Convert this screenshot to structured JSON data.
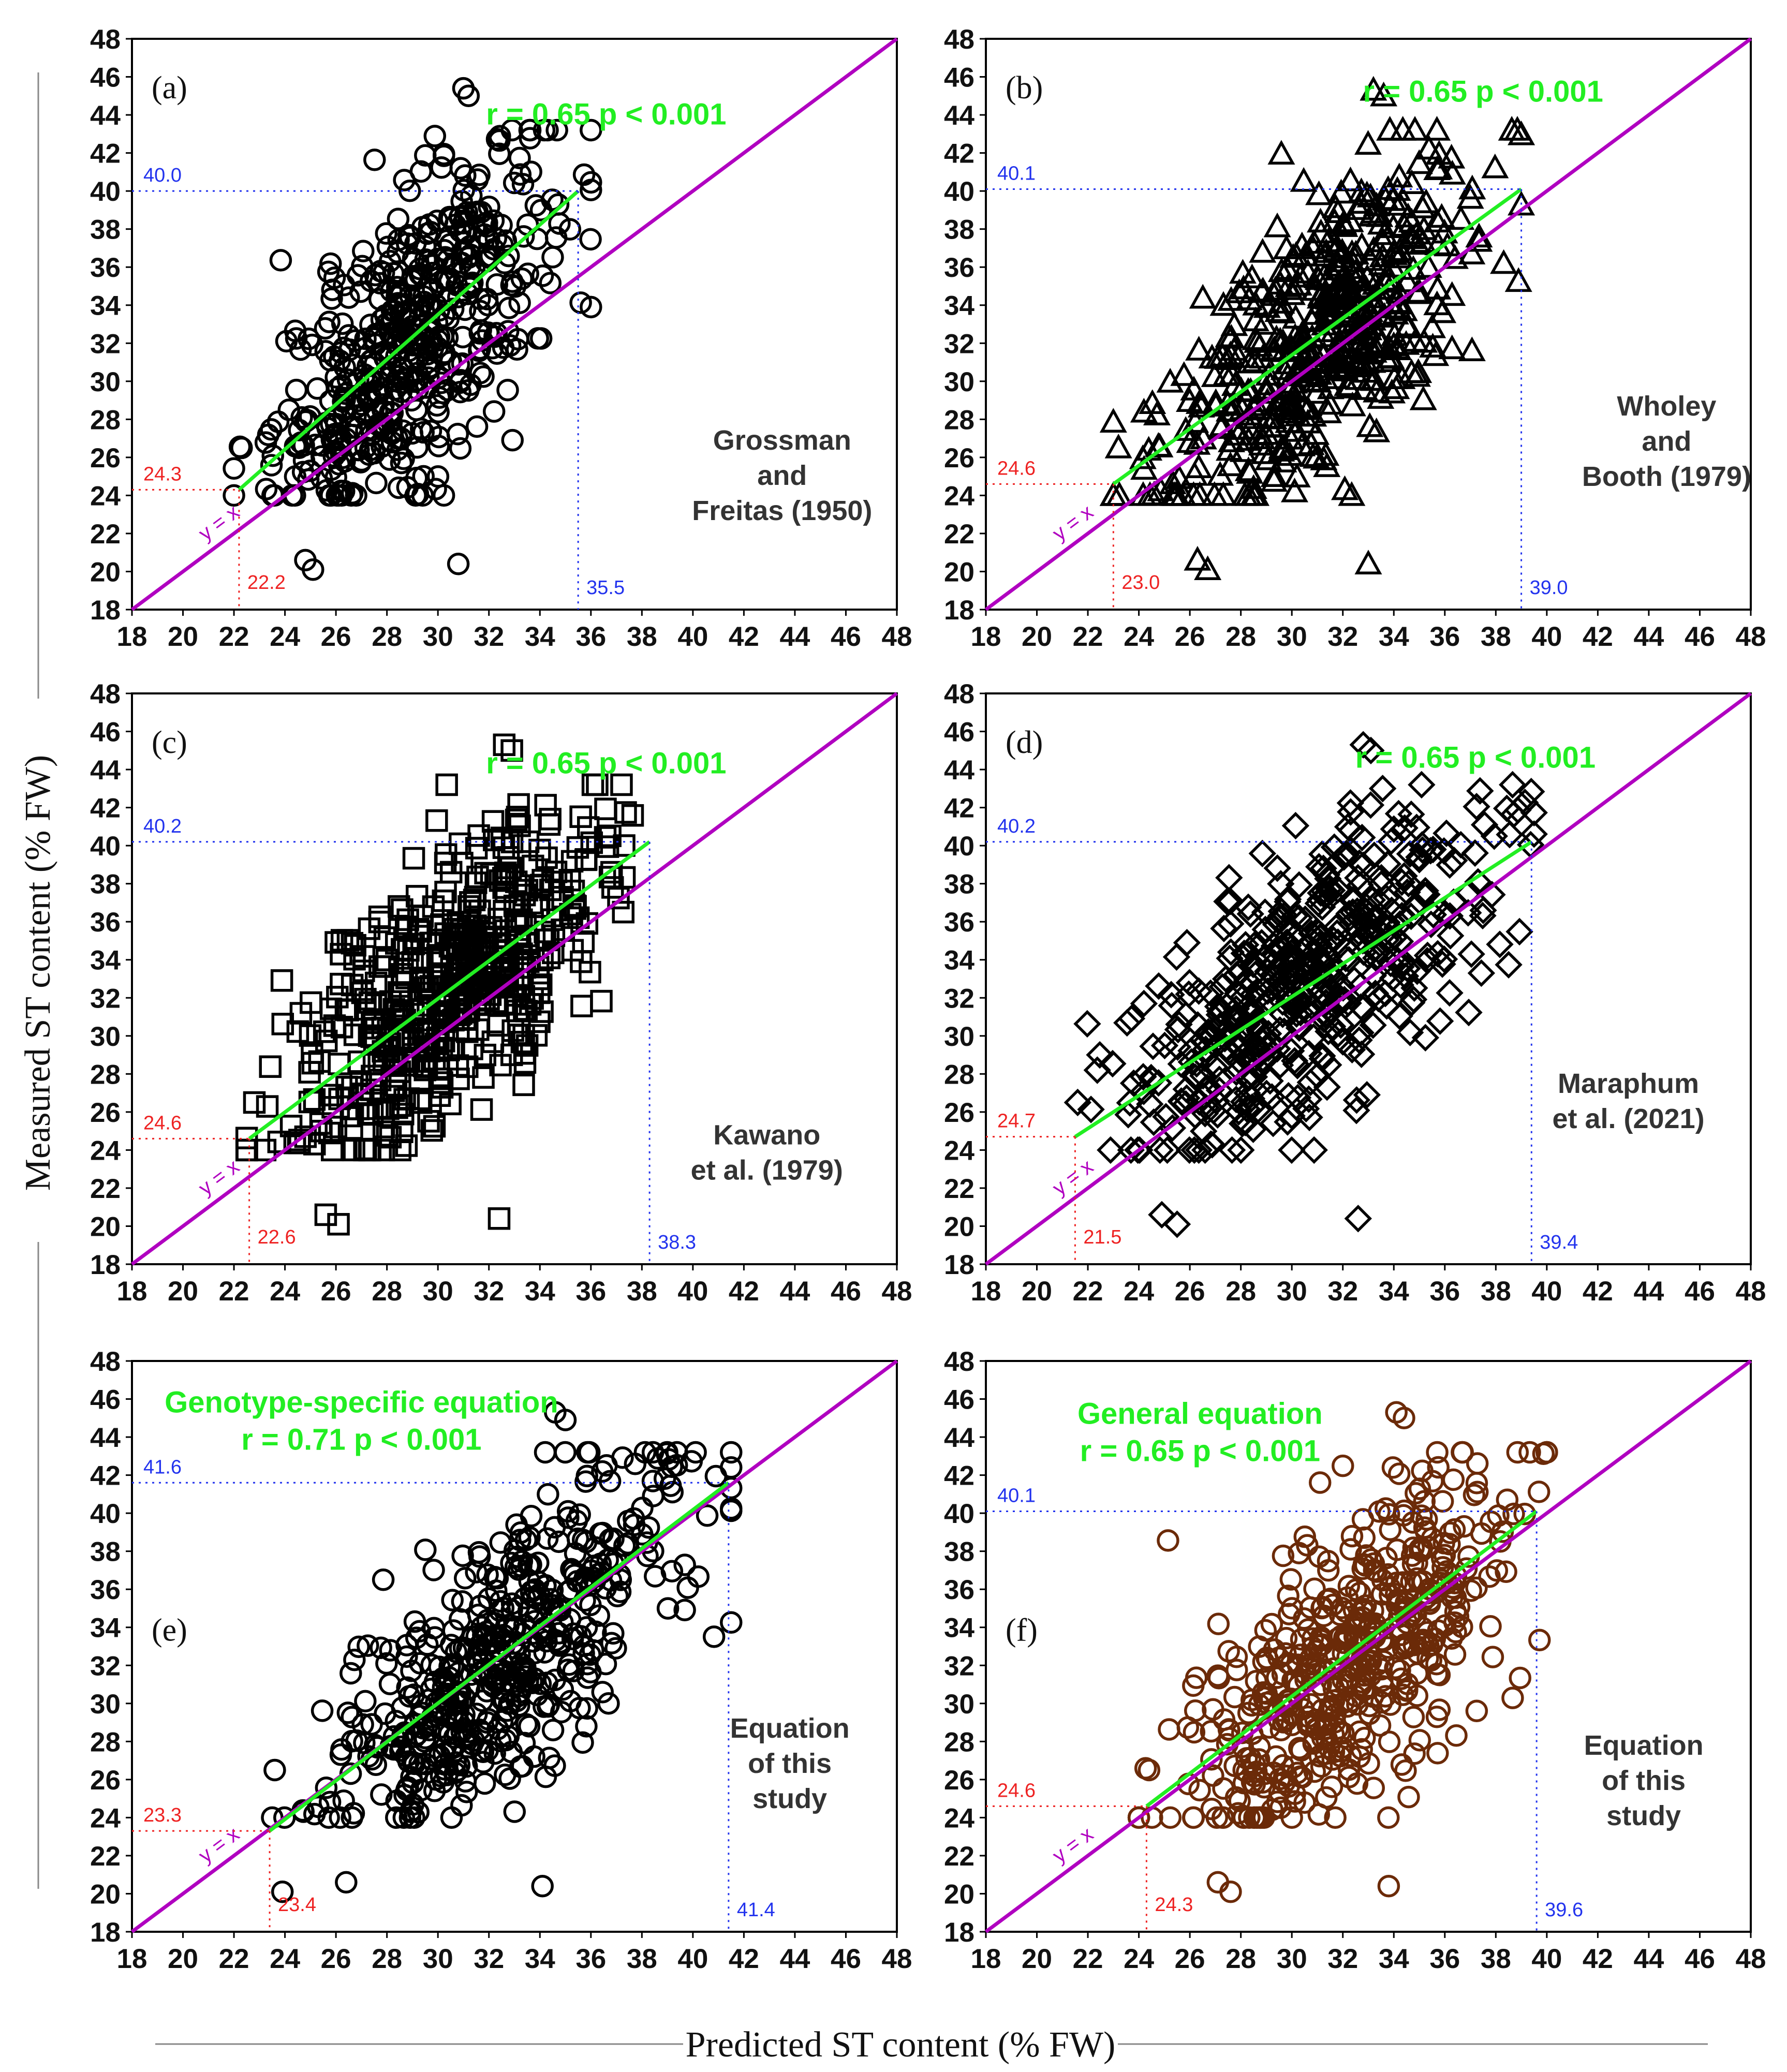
{
  "figure": {
    "xlabel": "Predicted ST content (% FW)",
    "ylabel": "Measured ST content (% FW)"
  },
  "colors": {
    "fit": "#22ee22",
    "identity": "#b000c0",
    "red_annot": "#ee2222",
    "blue_annot": "#2233ee",
    "marker_black": "#000000",
    "marker_brown": "#6b2a08"
  },
  "chart_data": [
    {
      "type": "scatter",
      "panel": "(a)",
      "marker": "circle",
      "stat": "r = 0.65 p < 0.001",
      "source": [
        "Grossman",
        "and",
        "Freitas (1950)"
      ],
      "identity_label": "y = x",
      "xlim": [
        18,
        48
      ],
      "ylim": [
        18,
        48
      ],
      "ticks": [
        "18",
        "20",
        "22",
        "24",
        "26",
        "28",
        "30",
        "32",
        "34",
        "36",
        "38",
        "40",
        "42",
        "44",
        "46",
        "48"
      ],
      "fit": {
        "x": [
          22.2,
          35.5
        ],
        "y": [
          24.3,
          40.0
        ]
      },
      "annot": {
        "x_low": "22.2",
        "y_low": "24.3",
        "x_high": "35.5",
        "y_high": "40.0"
      },
      "points_summary": {
        "n_approx": 500,
        "x_range": [
          22,
          36
        ],
        "y_range": [
          20,
          46
        ],
        "r": 0.65
      },
      "outliers": [
        [
          24.8,
          20.6
        ],
        [
          25.1,
          20.1
        ],
        [
          30.8,
          20.4
        ],
        [
          31.0,
          45.4
        ],
        [
          31.2,
          45.0
        ],
        [
          22.3,
          26.5
        ]
      ]
    },
    {
      "type": "scatter",
      "panel": "(b)",
      "marker": "triangle",
      "stat": "r = 0.65 p < 0.001",
      "source": [
        "Wholey",
        "and",
        "Booth (1979)"
      ],
      "identity_label": "y = x",
      "xlim": [
        18,
        48
      ],
      "ylim": [
        18,
        48
      ],
      "ticks": [
        "18",
        "20",
        "22",
        "24",
        "26",
        "28",
        "30",
        "32",
        "34",
        "36",
        "38",
        "40",
        "42",
        "44",
        "46",
        "48"
      ],
      "fit": {
        "x": [
          23.0,
          39.0
        ],
        "y": [
          24.6,
          40.1
        ]
      },
      "annot": {
        "x_low": "23.0",
        "y_low": "24.6",
        "x_high": "39.0",
        "y_high": "40.1"
      },
      "points_summary": {
        "n_approx": 500,
        "x_range": [
          23,
          39
        ],
        "y_range": [
          20,
          46
        ],
        "r": 0.65
      },
      "outliers": [
        [
          26.3,
          20.6
        ],
        [
          26.7,
          20.1
        ],
        [
          33.0,
          20.4
        ],
        [
          33.2,
          45.3
        ],
        [
          33.6,
          45.0
        ],
        [
          23.2,
          26.5
        ]
      ]
    },
    {
      "type": "scatter",
      "panel": "(c)",
      "marker": "square",
      "stat": "r = 0.65 p < 0.001",
      "source": [
        "Kawano",
        "et al. (1979)"
      ],
      "identity_label": "y = x",
      "xlim": [
        18,
        48
      ],
      "ylim": [
        18,
        48
      ],
      "ticks": [
        "18",
        "20",
        "22",
        "24",
        "26",
        "28",
        "30",
        "32",
        "34",
        "36",
        "38",
        "40",
        "42",
        "44",
        "46",
        "48"
      ],
      "fit": {
        "x": [
          22.6,
          38.3
        ],
        "y": [
          24.6,
          40.2
        ]
      },
      "annot": {
        "x_low": "22.6",
        "y_low": "24.6",
        "x_high": "38.3",
        "y_high": "40.2"
      },
      "points_summary": {
        "n_approx": 500,
        "x_range": [
          22.5,
          38.5
        ],
        "y_range": [
          20,
          46
        ],
        "r": 0.65
      },
      "outliers": [
        [
          25.6,
          20.6
        ],
        [
          26.1,
          20.1
        ],
        [
          32.4,
          20.4
        ],
        [
          32.6,
          45.3
        ],
        [
          32.9,
          45.0
        ],
        [
          22.8,
          26.5
        ]
      ]
    },
    {
      "type": "scatter",
      "panel": "(d)",
      "marker": "diamond",
      "stat": "r = 0.65 p < 0.001",
      "source": [
        "Maraphum",
        "et al. (2021)"
      ],
      "identity_label": "y = x",
      "xlim": [
        18,
        48
      ],
      "ylim": [
        18,
        48
      ],
      "ticks": [
        "18",
        "20",
        "22",
        "24",
        "26",
        "28",
        "30",
        "32",
        "34",
        "36",
        "38",
        "40",
        "42",
        "44",
        "46",
        "48"
      ],
      "fit": {
        "x": [
          21.5,
          39.4
        ],
        "y": [
          24.7,
          40.2
        ]
      },
      "annot": {
        "x_low": "21.5",
        "y_low": "24.7",
        "x_high": "39.4",
        "y_high": "40.2"
      },
      "points_summary": {
        "n_approx": 500,
        "x_range": [
          21.5,
          39.5
        ],
        "y_range": [
          20,
          46
        ],
        "r": 0.65
      },
      "outliers": [
        [
          24.9,
          20.6
        ],
        [
          25.5,
          20.1
        ],
        [
          32.6,
          20.4
        ],
        [
          32.8,
          45.3
        ],
        [
          33.1,
          45.0
        ],
        [
          21.6,
          26.5
        ]
      ]
    },
    {
      "type": "scatter",
      "panel": "(e)",
      "marker": "circle",
      "stat_title": "Genotype-specific equation",
      "stat": "r = 0.71 p < 0.001",
      "source": [
        "Equation",
        "of this",
        "study"
      ],
      "identity_label": "y = x",
      "xlim": [
        18,
        48
      ],
      "ylim": [
        18,
        48
      ],
      "ticks": [
        "18",
        "20",
        "22",
        "24",
        "26",
        "28",
        "30",
        "32",
        "34",
        "36",
        "38",
        "40",
        "42",
        "44",
        "46",
        "48"
      ],
      "fit": {
        "x": [
          23.4,
          41.4
        ],
        "y": [
          23.3,
          41.6
        ]
      },
      "annot": {
        "x_low": "23.4",
        "y_low": "23.3",
        "x_high": "41.4",
        "y_high": "41.6"
      },
      "points_summary": {
        "n_approx": 500,
        "x_range": [
          23.5,
          41.5
        ],
        "y_range": [
          20,
          46
        ],
        "r": 0.71
      },
      "outliers": [
        [
          23.9,
          20.1
        ],
        [
          26.4,
          20.6
        ],
        [
          34.1,
          20.4
        ],
        [
          34.6,
          45.3
        ],
        [
          35.0,
          44.9
        ],
        [
          23.6,
          26.5
        ]
      ]
    },
    {
      "type": "scatter",
      "panel": "(f)",
      "marker": "circle",
      "stat_title": "General equation",
      "stat": "r = 0.65 p < 0.001",
      "source": [
        "Equation",
        "of this",
        "study"
      ],
      "identity_label": "y = x",
      "xlim": [
        18,
        48
      ],
      "ylim": [
        18,
        48
      ],
      "ticks": [
        "18",
        "20",
        "22",
        "24",
        "26",
        "28",
        "30",
        "32",
        "34",
        "36",
        "38",
        "40",
        "42",
        "44",
        "46",
        "48"
      ],
      "fit": {
        "x": [
          24.3,
          39.6
        ],
        "y": [
          24.6,
          40.1
        ]
      },
      "annot": {
        "x_low": "24.3",
        "y_low": "24.6",
        "x_high": "39.6",
        "y_high": "40.1"
      },
      "points_summary": {
        "n_approx": 500,
        "x_range": [
          24,
          40
        ],
        "y_range": [
          20,
          46
        ],
        "r": 0.65
      },
      "outliers": [
        [
          27.1,
          20.6
        ],
        [
          27.6,
          20.1
        ],
        [
          33.8,
          20.4
        ],
        [
          34.1,
          45.3
        ],
        [
          34.4,
          45.0
        ],
        [
          24.4,
          26.5
        ]
      ]
    }
  ]
}
